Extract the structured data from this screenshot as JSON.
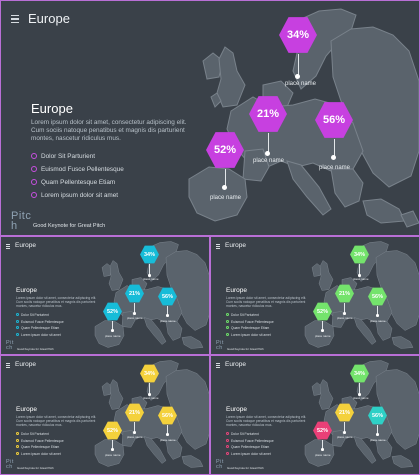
{
  "slides": [
    {
      "header": "Europe",
      "heading": "Europe",
      "body": "Lorem ipsum dolor sit amet, consectetur adipiscing elit. Cum sociis natoque penatibus et magnis dis parturient montes, nascetur ridiculus mus.",
      "bullets": [
        "Dolor Sit Parturient",
        "Euismod Fusce Pellentesque",
        "Quam Pellentesque Etiam",
        "Lorem ipsum dolor sit amet"
      ],
      "brand": "Pitch",
      "tagline": "Good Keynote for Great Pitch",
      "accent": "#c74fe0",
      "markers": [
        {
          "value": "34%",
          "label": "place name",
          "color": "#c740e0"
        },
        {
          "value": "21%",
          "label": "place name",
          "color": "#c740e0"
        },
        {
          "value": "56%",
          "label": "place name",
          "color": "#c740e0"
        },
        {
          "value": "52%",
          "label": "place name",
          "color": "#c740e0"
        }
      ]
    },
    {
      "header": "Europe",
      "heading": "Europe",
      "body": "Lorem ipsum dolor sit amet, consectetur adipiscing elit. Cum sociis natoque penatibus et magnis dis parturient montes, nascetur ridiculus mus.",
      "bullets": [
        "Dolor Sit Parturient",
        "Euismod Fusce Pellentesque",
        "Quam Pellentesque Etiam",
        "Lorem ipsum dolor sit amet"
      ],
      "brand": "Pitch",
      "tagline": "Good Keynote for Great Pitch",
      "accent": "#1bb8d6",
      "markers": [
        {
          "value": "34%",
          "label": "place name",
          "color": "#17bcd8"
        },
        {
          "value": "21%",
          "label": "place name",
          "color": "#17bcd8"
        },
        {
          "value": "56%",
          "label": "place name",
          "color": "#17bcd8"
        },
        {
          "value": "52%",
          "label": "place name",
          "color": "#17bcd8"
        }
      ]
    },
    {
      "header": "Europe",
      "heading": "Europe",
      "body": "Lorem ipsum dolor sit amet, consectetur adipiscing elit. Cum sociis natoque penatibus et magnis dis parturient montes, nascetur ridiculus mus.",
      "bullets": [
        "Dolor Sit Parturient",
        "Euismod Fusce Pellentesque",
        "Quam Pellentesque Etiam",
        "Lorem ipsum dolor sit amet"
      ],
      "brand": "Pitch",
      "tagline": "Good Keynote for Great Pitch",
      "accent": "#6fe06a",
      "markers": [
        {
          "value": "34%",
          "label": "place name",
          "color": "#74e36c"
        },
        {
          "value": "21%",
          "label": "place name",
          "color": "#74e36c"
        },
        {
          "value": "56%",
          "label": "place name",
          "color": "#74e36c"
        },
        {
          "value": "52%",
          "label": "place name",
          "color": "#74e36c"
        }
      ]
    },
    {
      "header": "Europe",
      "heading": "Europe",
      "body": "Lorem ipsum dolor sit amet, consectetur adipiscing elit. Cum sociis natoque penatibus et magnis dis parturient montes, nascetur ridiculus mus.",
      "bullets": [
        "Dolor Sit Parturient",
        "Euismod Fusce Pellentesque",
        "Quam Pellentesque Etiam",
        "Lorem ipsum dolor sit amet"
      ],
      "brand": "Pitch",
      "tagline": "Good Keynote for Great Pitch",
      "accent": "#f2cf3a",
      "markers": [
        {
          "value": "34%",
          "label": "place name",
          "color": "#f4d13c"
        },
        {
          "value": "21%",
          "label": "place name",
          "color": "#f4d13c"
        },
        {
          "value": "56%",
          "label": "place name",
          "color": "#f4d13c"
        },
        {
          "value": "52%",
          "label": "place name",
          "color": "#f4d13c"
        }
      ]
    },
    {
      "header": "Europe",
      "heading": "Europe",
      "body": "Lorem ipsum dolor sit amet, consectetur adipiscing elit. Cum sociis natoque penatibus et magnis dis parturient montes, nascetur ridiculus mus.",
      "bullets": [
        "Dolor Sit Parturient",
        "Euismod Fusce Pellentesque",
        "Quam Pellentesque Etiam",
        "Lorem ipsum dolor sit amet"
      ],
      "brand": "Pitch",
      "tagline": "Good Keynote for Great Pitch",
      "accent": "#e8457a",
      "markers": [
        {
          "value": "34%",
          "label": "place name",
          "color": "#74e36c"
        },
        {
          "value": "21%",
          "label": "place name",
          "color": "#f4d13c"
        },
        {
          "value": "56%",
          "label": "place name",
          "color": "#2ed0c6"
        },
        {
          "value": "52%",
          "label": "place name",
          "color": "#ea3f77"
        }
      ]
    }
  ]
}
